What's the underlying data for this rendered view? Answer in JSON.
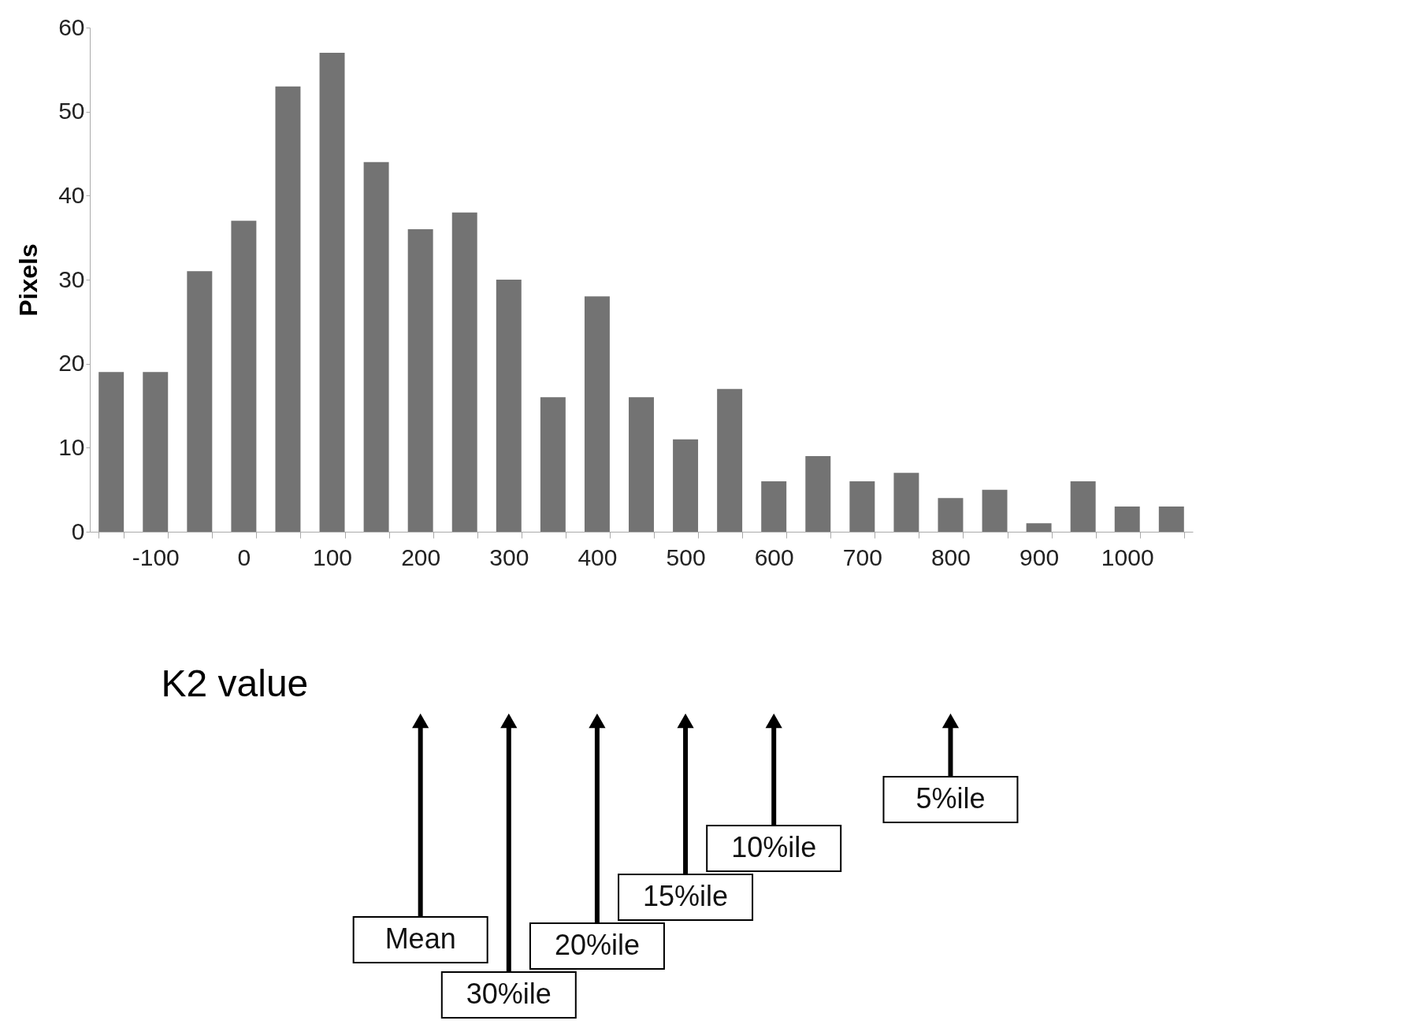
{
  "chart_data": {
    "type": "bar",
    "xlabel": "K2 value",
    "ylabel": "Pixels",
    "categories": [
      null,
      "-100",
      null,
      "0",
      null,
      "100",
      null,
      "200",
      null,
      "300",
      null,
      "400",
      null,
      "500",
      null,
      "600",
      null,
      "700",
      null,
      "800",
      null,
      "900",
      null,
      "1000",
      null
    ],
    "values": [
      19,
      19,
      31,
      37,
      53,
      57,
      44,
      36,
      38,
      30,
      16,
      28,
      16,
      11,
      17,
      6,
      9,
      6,
      7,
      4,
      5,
      1,
      6,
      3,
      3
    ],
    "color": "#737373",
    "ylim": [
      0,
      60
    ],
    "yticks": [
      0,
      10,
      20,
      30,
      40,
      50,
      60
    ],
    "grid": false,
    "legend": false,
    "annotations": [
      {
        "text": "Mean",
        "x": "200"
      },
      {
        "text": "30%ile",
        "x": "300"
      },
      {
        "text": "20%ile",
        "x": "400"
      },
      {
        "text": "15%ile",
        "x": "500"
      },
      {
        "text": "10%ile",
        "x": "600"
      },
      {
        "text": "5%ile",
        "x": "800"
      }
    ]
  }
}
